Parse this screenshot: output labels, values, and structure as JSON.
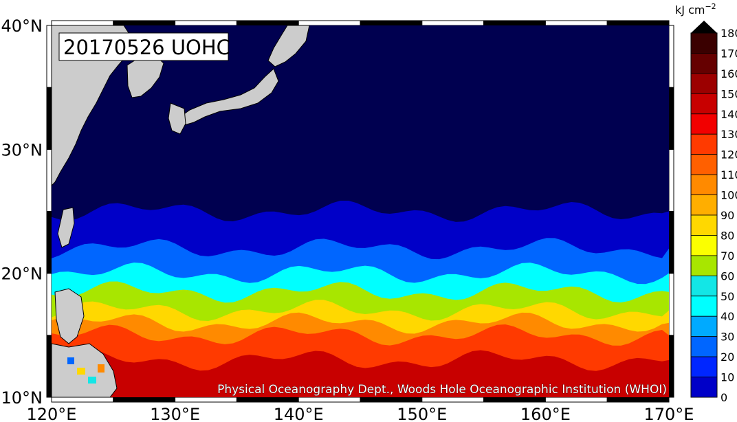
{
  "title": "20170526 UOHC",
  "credit": "Physical Oceanography Dept., Woods Hole Oceanographic Institution (WHOI)",
  "colorbar": {
    "unit": "kJ cm",
    "unit_exponent": "−2",
    "ticks": [
      "180",
      "170",
      "160",
      "150",
      "140",
      "130",
      "120",
      "110",
      "100",
      "90",
      "80",
      "70",
      "60",
      "50",
      "40",
      "30",
      "20",
      "10",
      "0"
    ],
    "colors": [
      "#3a0000",
      "#650000",
      "#9c0000",
      "#c80000",
      "#f20000",
      "#ff3a00",
      "#ff6000",
      "#ff8a00",
      "#ffae00",
      "#ffd800",
      "#fbff00",
      "#a8e600",
      "#13e6e6",
      "#00ffff",
      "#00aaff",
      "#0066ff",
      "#0026ff",
      "#0000c8",
      "#000080",
      "#000050"
    ]
  },
  "axes": {
    "x_ticks": [
      "120°E",
      "130°E",
      "140°E",
      "150°E",
      "160°E",
      "170°E"
    ],
    "y_ticks": [
      "40°N",
      "30°N",
      "20°N",
      "10°N"
    ]
  },
  "map_data": {
    "type": "heatmap",
    "variable": "Upper Ocean Heat Content",
    "date": "20170526",
    "lon_range": [
      120,
      170
    ],
    "lat_range": [
      10,
      40
    ],
    "bands": [
      {
        "lat_top": 40,
        "lat_bottom": 25,
        "value": 0
      },
      {
        "lat_top": 25,
        "lat_bottom": 22,
        "value": 20
      },
      {
        "lat_top": 22,
        "lat_bottom": 20,
        "value": 40
      },
      {
        "lat_top": 20,
        "lat_bottom": 18.5,
        "value": 60
      },
      {
        "lat_top": 18.5,
        "lat_bottom": 17,
        "value": 80
      },
      {
        "lat_top": 17,
        "lat_bottom": 16,
        "value": 100
      },
      {
        "lat_top": 16,
        "lat_bottom": 15,
        "value": 120
      },
      {
        "lat_top": 15,
        "lat_bottom": 13,
        "value": 140
      },
      {
        "lat_top": 13,
        "lat_bottom": 10,
        "value": 160
      }
    ]
  }
}
